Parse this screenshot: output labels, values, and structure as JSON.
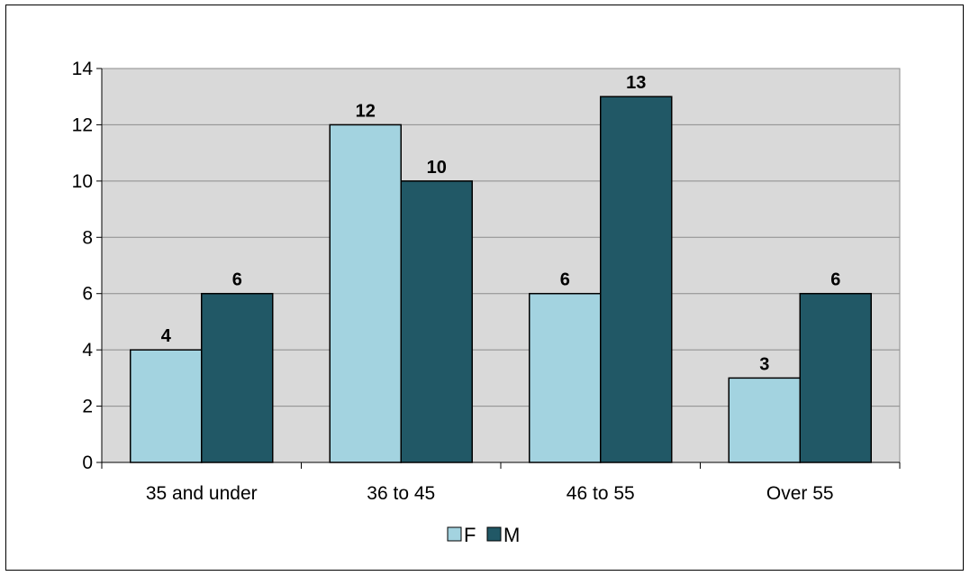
{
  "chart_data": {
    "type": "bar",
    "categories": [
      "35 and under",
      "36 to 45",
      "46 to 55",
      "Over 55"
    ],
    "series": [
      {
        "name": "F",
        "values": [
          4,
          12,
          6,
          3
        ],
        "color": "#a3d3e0"
      },
      {
        "name": "M",
        "values": [
          6,
          10,
          13,
          6
        ],
        "color": "#215866"
      }
    ],
    "ylim": [
      0,
      14
    ],
    "yticks": [
      0,
      2,
      4,
      6,
      8,
      10,
      12,
      14
    ],
    "grid": true,
    "plot_background": "#d9d9d9",
    "legend": "bottom",
    "title": "",
    "xlabel": "",
    "ylabel": ""
  }
}
